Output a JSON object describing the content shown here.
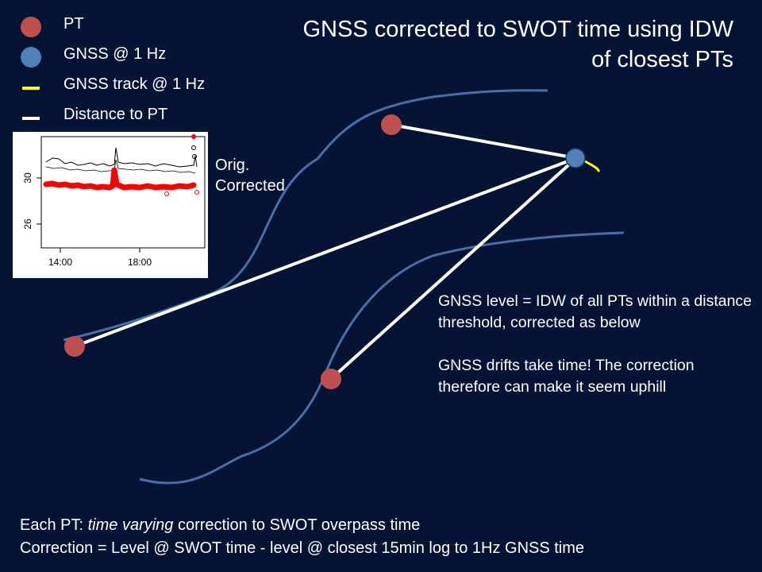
{
  "title": {
    "line1": "GNSS corrected to SWOT time using IDW",
    "line2": "of closest PTs"
  },
  "legend": {
    "pt": "PT",
    "gnss": "GNSS @ 1 Hz",
    "gnss_track": "GNSS track @ 1 Hz",
    "distance": "Distance to PT"
  },
  "inset": {
    "y_ticks": [
      "30",
      "26"
    ],
    "x_ticks": [
      "14:00",
      "18:00"
    ],
    "label_line1": "Orig.",
    "label_line2": "Corrected"
  },
  "info": {
    "para1": "GNSS level = IDW of all PTs within a distance threshold, corrected as below",
    "para2": "GNSS drifts take time! The correction therefore can make it seem uphill"
  },
  "footer": {
    "line1_prefix": "Each PT: ",
    "line1_emphasis": "time varying",
    "line1_suffix": " correction to SWOT overpass time",
    "line2": "Correction = Level @ SWOT time - level @ closest 15min log to 1Hz GNSS time"
  },
  "colors": {
    "background": "#051334",
    "river": "#4a6fa8",
    "pt": "#c0504d",
    "gnss": "#4f81bd",
    "track": "#ffff00",
    "distance": "#ffffff",
    "series_orig": "#000000",
    "series_corrected": "#ff0000"
  }
}
